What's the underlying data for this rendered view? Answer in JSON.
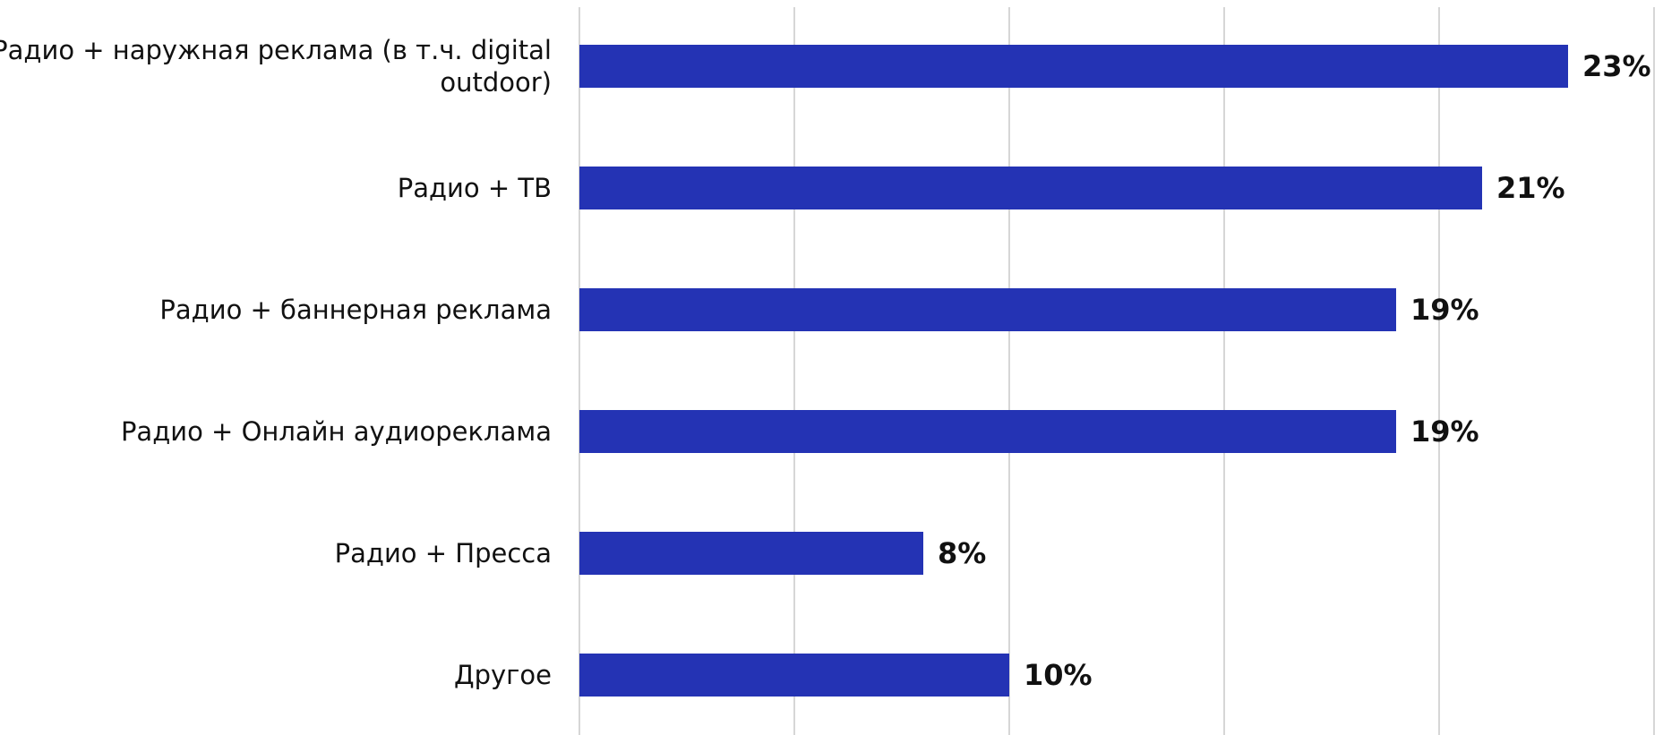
{
  "chart_data": {
    "type": "bar",
    "orientation": "horizontal",
    "categories": [
      "Радио + наружная реклама (в т.ч. digital outdoor)",
      "Радио + ТВ",
      "Радио + баннерная реклама",
      "Радио + Онлайн аудиореклама",
      "Радио + Пресса",
      "Другое"
    ],
    "values": [
      23,
      21,
      19,
      19,
      8,
      10
    ],
    "value_labels": [
      "23%",
      "21%",
      "19%",
      "19%",
      "8%",
      "10%"
    ],
    "title": "",
    "xlabel": "",
    "ylabel": "",
    "xlim": [
      0,
      25
    ],
    "grid": true,
    "legend": "none",
    "colors": {
      "bar": "#2433b4",
      "grid": "#d6d6d6",
      "text": "#111111"
    }
  }
}
